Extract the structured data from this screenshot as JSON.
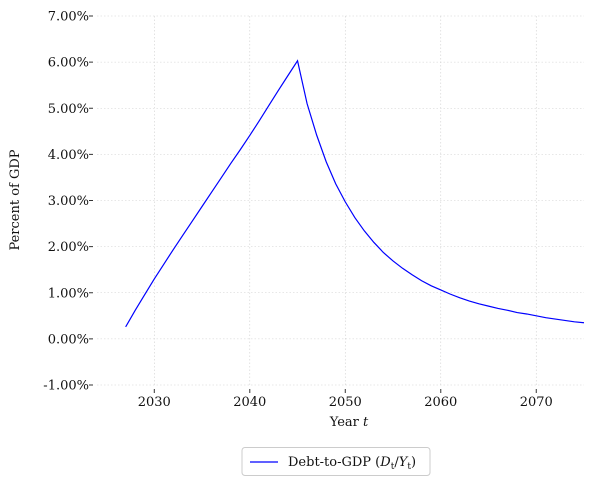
{
  "chart_data": {
    "type": "line",
    "title": "",
    "xlabel": {
      "main": "Year ",
      "italic": "t"
    },
    "ylabel": "Percent of GDP",
    "xlim": [
      2024,
      2075
    ],
    "ylim": [
      -1.0,
      7.0
    ],
    "x_ticks": [
      2030,
      2040,
      2050,
      2060,
      2070
    ],
    "y_ticks": [
      -1,
      0,
      1,
      2,
      3,
      4,
      5,
      6,
      7
    ],
    "y_tick_labels": [
      "-1.00%",
      "0.00%",
      "1.00%",
      "2.00%",
      "3.00%",
      "4.00%",
      "5.00%",
      "6.00%",
      "7.00%"
    ],
    "grid": true,
    "legend_position": "bottom-center-outside",
    "series": [
      {
        "name": {
          "prefix": "Debt-to-GDP (",
          "d": "D",
          "sep": "/",
          "y": "Y",
          "sub": "t",
          "suffix": ")"
        },
        "color": "#0000ff",
        "x": [
          2027,
          2028,
          2029,
          2030,
          2031,
          2032,
          2033,
          2034,
          2035,
          2036,
          2037,
          2038,
          2039,
          2040,
          2041,
          2042,
          2043,
          2044,
          2045,
          2046,
          2047,
          2048,
          2049,
          2050,
          2051,
          2052,
          2053,
          2054,
          2055,
          2056,
          2057,
          2058,
          2059,
          2060,
          2061,
          2062,
          2063,
          2064,
          2065,
          2066,
          2067,
          2068,
          2069,
          2070,
          2071,
          2072,
          2073,
          2074,
          2075
        ],
        "y": [
          0.26,
          0.62,
          0.96,
          1.3,
          1.62,
          1.94,
          2.25,
          2.56,
          2.87,
          3.18,
          3.49,
          3.8,
          4.1,
          4.41,
          4.73,
          5.06,
          5.39,
          5.71,
          6.03,
          5.1,
          4.42,
          3.84,
          3.36,
          2.97,
          2.63,
          2.34,
          2.09,
          1.87,
          1.69,
          1.53,
          1.39,
          1.26,
          1.15,
          1.06,
          0.97,
          0.89,
          0.82,
          0.76,
          0.71,
          0.66,
          0.62,
          0.57,
          0.54,
          0.5,
          0.46,
          0.43,
          0.4,
          0.37,
          0.35
        ]
      }
    ]
  }
}
